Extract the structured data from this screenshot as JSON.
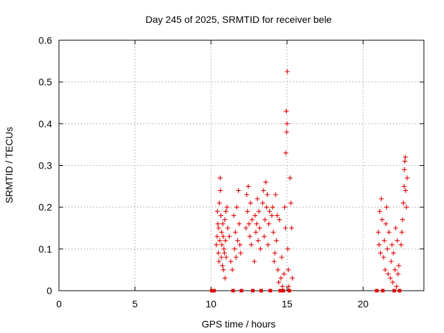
{
  "chart_data": {
    "type": "scatter",
    "title": "Day 245 of 2025, SRMTID for receiver bele",
    "xlabel": "GPS time / hours",
    "ylabel": "SRMTID / TECUs",
    "xlim": [
      0,
      24
    ],
    "ylim": [
      0,
      0.6
    ],
    "x_ticks": [
      0,
      5,
      10,
      15,
      20
    ],
    "x_tick_labels": [
      "0",
      "5",
      "10",
      "15",
      "20"
    ],
    "y_ticks": [
      0,
      0.1,
      0.2,
      0.3,
      0.4,
      0.5,
      0.6
    ],
    "y_tick_labels": [
      "0",
      "0.1",
      "0.2",
      "0.3",
      "0.4",
      "0.5",
      "0.6"
    ],
    "grid": true,
    "marker": "+",
    "series": [
      {
        "name": "SRMTID",
        "color": "#e00000",
        "points": [
          [
            10.05,
            0.0
          ],
          [
            10.2,
            0.0
          ],
          [
            10.35,
            0.11
          ],
          [
            10.4,
            0.13
          ],
          [
            10.42,
            0.19
          ],
          [
            10.45,
            0.16
          ],
          [
            10.48,
            0.09
          ],
          [
            10.5,
            0.15
          ],
          [
            10.52,
            0.07
          ],
          [
            10.55,
            0.21
          ],
          [
            10.58,
            0.12
          ],
          [
            10.6,
            0.27
          ],
          [
            10.62,
            0.24
          ],
          [
            10.65,
            0.18
          ],
          [
            10.68,
            0.08
          ],
          [
            10.7,
            0.14
          ],
          [
            10.72,
            0.11
          ],
          [
            10.75,
            0.06
          ],
          [
            10.78,
            0.16
          ],
          [
            10.8,
            0.13
          ],
          [
            10.82,
            0.05
          ],
          [
            10.85,
            0.1
          ],
          [
            10.88,
            0.09
          ],
          [
            10.9,
            0.17
          ],
          [
            10.92,
            0.03
          ],
          [
            10.95,
            0.12
          ],
          [
            10.98,
            0.19
          ],
          [
            11.0,
            0.08
          ],
          [
            11.05,
            0.2
          ],
          [
            11.1,
            0.15
          ],
          [
            11.2,
            0.13
          ],
          [
            11.3,
            0.07
          ],
          [
            11.4,
            0.05
          ],
          [
            11.45,
            0.0
          ],
          [
            11.5,
            0.18
          ],
          [
            11.55,
            0.1
          ],
          [
            11.6,
            0.14
          ],
          [
            11.65,
            0.08
          ],
          [
            11.7,
            0.2
          ],
          [
            11.75,
            0.12
          ],
          [
            11.8,
            0.24
          ],
          [
            11.85,
            0.16
          ],
          [
            11.9,
            0.11
          ],
          [
            11.95,
            0.09
          ],
          [
            12.0,
            0.0
          ],
          [
            12.3,
            0.15
          ],
          [
            12.35,
            0.23
          ],
          [
            12.4,
            0.19
          ],
          [
            12.45,
            0.25
          ],
          [
            12.5,
            0.16
          ],
          [
            12.55,
            0.13
          ],
          [
            12.6,
            0.21
          ],
          [
            12.65,
            0.11
          ],
          [
            12.7,
            0.17
          ],
          [
            12.75,
            0.0
          ],
          [
            12.85,
            0.07
          ],
          [
            12.9,
            0.18
          ],
          [
            12.95,
            0.14
          ],
          [
            13.0,
            0.16
          ],
          [
            13.05,
            0.22
          ],
          [
            13.1,
            0.12
          ],
          [
            13.15,
            0.19
          ],
          [
            13.2,
            0.15
          ],
          [
            13.25,
            0.1
          ],
          [
            13.3,
            0.0
          ],
          [
            13.4,
            0.21
          ],
          [
            13.45,
            0.24
          ],
          [
            13.5,
            0.13
          ],
          [
            13.55,
            0.17
          ],
          [
            13.6,
            0.26
          ],
          [
            13.65,
            0.2
          ],
          [
            13.7,
            0.23
          ],
          [
            13.75,
            0.11
          ],
          [
            13.8,
            0.16
          ],
          [
            13.85,
            0.19
          ],
          [
            13.9,
            0.0
          ],
          [
            14.0,
            0.18
          ],
          [
            14.05,
            0.2
          ],
          [
            14.1,
            0.14
          ],
          [
            14.15,
            0.07
          ],
          [
            14.2,
            0.09
          ],
          [
            14.25,
            0.23
          ],
          [
            14.3,
            0.12
          ],
          [
            14.35,
            0.18
          ],
          [
            14.4,
            0.05
          ],
          [
            14.45,
            0.02
          ],
          [
            14.5,
            0.17
          ],
          [
            14.55,
            0.0
          ],
          [
            14.6,
            0.03
          ],
          [
            14.65,
            0.08
          ],
          [
            14.7,
            0.01
          ],
          [
            14.75,
            0.0
          ],
          [
            14.8,
            0.04
          ],
          [
            14.85,
            0.2
          ],
          [
            14.9,
            0.15
          ],
          [
            14.92,
            0.33
          ],
          [
            14.95,
            0.43
          ],
          [
            14.97,
            0.38
          ],
          [
            15.0,
            0.4
          ],
          [
            15.02,
            0.525
          ],
          [
            15.05,
            0.1
          ],
          [
            15.08,
            0.05
          ],
          [
            15.1,
            0.01
          ],
          [
            15.15,
            0.0
          ],
          [
            15.2,
            0.27
          ],
          [
            15.25,
            0.21
          ],
          [
            15.3,
            0.15
          ],
          [
            15.35,
            0.03
          ],
          [
            20.9,
            0.0
          ],
          [
            21.0,
            0.14
          ],
          [
            21.05,
            0.11
          ],
          [
            21.1,
            0.19
          ],
          [
            21.15,
            0.09
          ],
          [
            21.2,
            0.22
          ],
          [
            21.25,
            0.17
          ],
          [
            21.3,
            0.0
          ],
          [
            21.35,
            0.08
          ],
          [
            21.4,
            0.12
          ],
          [
            21.45,
            0.05
          ],
          [
            21.5,
            0.16
          ],
          [
            21.55,
            0.2
          ],
          [
            21.6,
            0.1
          ],
          [
            21.65,
            0.04
          ],
          [
            21.7,
            0.14
          ],
          [
            21.8,
            0.03
          ],
          [
            21.85,
            0.07
          ],
          [
            21.9,
            0.11
          ],
          [
            21.95,
            0.02
          ],
          [
            22.0,
            0.09
          ],
          [
            22.05,
            0.0
          ],
          [
            22.1,
            0.05
          ],
          [
            22.15,
            0.15
          ],
          [
            22.2,
            0.01
          ],
          [
            22.25,
            0.12
          ],
          [
            22.3,
            0.04
          ],
          [
            22.35,
            0.06
          ],
          [
            22.4,
            0.0
          ],
          [
            22.5,
            0.11
          ],
          [
            22.55,
            0.14
          ],
          [
            22.6,
            0.17
          ],
          [
            22.65,
            0.21
          ],
          [
            22.7,
            0.25
          ],
          [
            22.72,
            0.29
          ],
          [
            22.75,
            0.31
          ],
          [
            22.78,
            0.32
          ],
          [
            22.8,
            0.24
          ],
          [
            22.85,
            0.2
          ],
          [
            22.9,
            0.27
          ]
        ]
      }
    ]
  }
}
